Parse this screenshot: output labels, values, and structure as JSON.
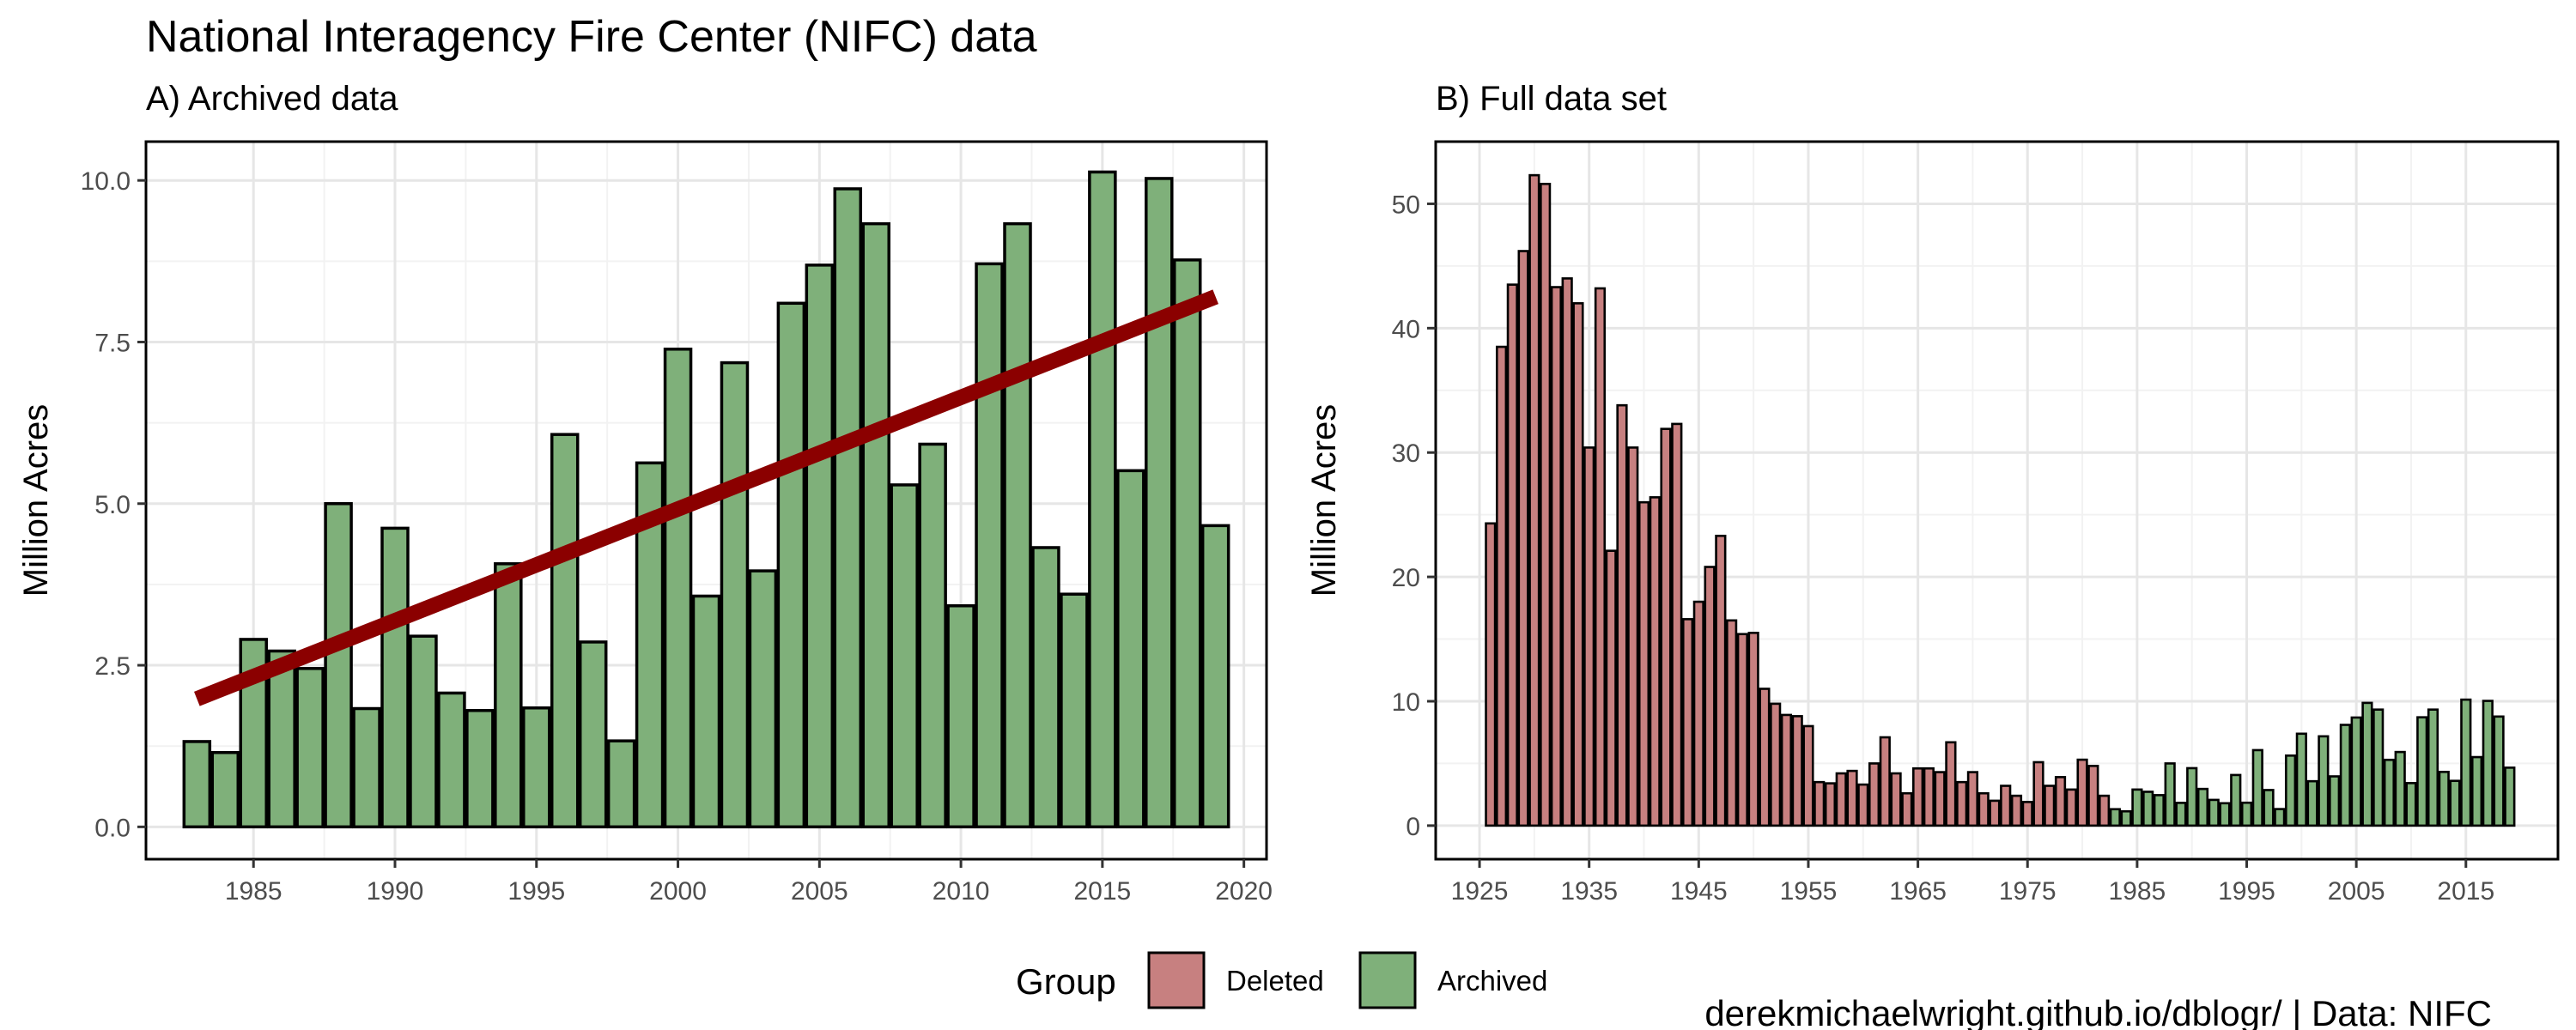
{
  "figure": {
    "title": "National Interagency Fire Center (NIFC) data",
    "caption": "derekmichaelwright.github.io/dblogr/ | Data: NIFC",
    "legend": {
      "title": "Group",
      "items": [
        {
          "label": "Deleted",
          "color": "#c78080"
        },
        {
          "label": "Archived",
          "color": "#7fb07a"
        }
      ]
    },
    "colors": {
      "deleted": "#c78080",
      "archived": "#7fb07a",
      "trend": "#8b0000",
      "outline": "#000000"
    }
  },
  "chart_data": [
    {
      "type": "bar",
      "title": "A) Archived data",
      "xlabel": "",
      "ylabel": "Million Acres",
      "xlim": [
        1981.2,
        2020.8
      ],
      "ylim": [
        -0.5,
        10.6
      ],
      "xticks": [
        1985,
        1990,
        1995,
        2000,
        2005,
        2010,
        2015,
        2020
      ],
      "yticks": [
        0.0,
        2.5,
        5.0,
        7.5,
        10.0
      ],
      "ytick_labels": [
        "0.0",
        "2.5",
        "5.0",
        "7.5",
        "10.0"
      ],
      "grid": true,
      "series": [
        {
          "group": "Archived",
          "x": [
            1983,
            1984,
            1985,
            1986,
            1987,
            1988,
            1989,
            1990,
            1991,
            1992,
            1993,
            1994,
            1995,
            1996,
            1997,
            1998,
            1999,
            2000,
            2001,
            2002,
            2003,
            2004,
            2005,
            2006,
            2007,
            2008,
            2009,
            2010,
            2011,
            2012,
            2013,
            2014,
            2015,
            2016,
            2017,
            2018,
            2019
          ],
          "values": [
            1.32,
            1.15,
            2.9,
            2.72,
            2.45,
            5.0,
            1.83,
            4.62,
            2.95,
            2.07,
            1.8,
            4.07,
            1.84,
            6.07,
            2.86,
            1.33,
            5.63,
            7.39,
            3.57,
            7.18,
            3.96,
            8.1,
            8.69,
            9.87,
            9.33,
            5.29,
            5.92,
            3.42,
            8.71,
            9.33,
            4.32,
            3.6,
            10.13,
            5.51,
            10.03,
            8.77,
            4.66
          ]
        }
      ],
      "trend": {
        "x": [
          1983,
          2019
        ],
        "y": [
          1.98,
          8.2
        ]
      }
    },
    {
      "type": "bar",
      "title": "B) Full data set",
      "xlabel": "",
      "ylabel": "Million Acres",
      "xlim": [
        1921.0,
        2023.4
      ],
      "ylim": [
        -2.7,
        55.0
      ],
      "xticks": [
        1925,
        1935,
        1945,
        1955,
        1965,
        1975,
        1985,
        1995,
        2005,
        2015
      ],
      "yticks": [
        0,
        10,
        20,
        30,
        40,
        50
      ],
      "ytick_labels": [
        "0",
        "10",
        "20",
        "30",
        "40",
        "50"
      ],
      "grid": true,
      "series": [
        {
          "group": "Deleted",
          "x": [
            1926,
            1927,
            1928,
            1929,
            1930,
            1931,
            1932,
            1933,
            1934,
            1935,
            1936,
            1937,
            1938,
            1939,
            1940,
            1941,
            1942,
            1943,
            1944,
            1945,
            1946,
            1947,
            1948,
            1949,
            1950,
            1951,
            1952,
            1953,
            1954,
            1955,
            1956,
            1957,
            1958,
            1959,
            1960,
            1961,
            1962,
            1963,
            1964,
            1965,
            1966,
            1967,
            1968,
            1969,
            1970,
            1971,
            1972,
            1973,
            1974,
            1975,
            1976,
            1977,
            1978,
            1979,
            1980,
            1981,
            1982
          ],
          "values": [
            24.3,
            38.5,
            43.5,
            46.2,
            52.3,
            51.6,
            43.3,
            44.0,
            42.0,
            30.4,
            43.2,
            22.1,
            33.8,
            30.4,
            26.0,
            26.4,
            31.9,
            32.3,
            16.6,
            18.0,
            20.8,
            23.3,
            16.5,
            15.4,
            15.5,
            11.0,
            9.8,
            8.9,
            8.8,
            8.0,
            3.5,
            3.4,
            4.2,
            4.4,
            3.3,
            5.0,
            7.1,
            4.2,
            2.6,
            4.6,
            4.6,
            4.3,
            6.7,
            3.5,
            4.3,
            2.6,
            2.0,
            3.2,
            2.4,
            1.9,
            5.1,
            3.2,
            3.9,
            2.9,
            5.3,
            4.8,
            2.4
          ]
        },
        {
          "group": "Archived",
          "x": [
            1983,
            1984,
            1985,
            1986,
            1987,
            1988,
            1989,
            1990,
            1991,
            1992,
            1993,
            1994,
            1995,
            1996,
            1997,
            1998,
            1999,
            2000,
            2001,
            2002,
            2003,
            2004,
            2005,
            2006,
            2007,
            2008,
            2009,
            2010,
            2011,
            2012,
            2013,
            2014,
            2015,
            2016,
            2017,
            2018,
            2019
          ],
          "values": [
            1.32,
            1.15,
            2.9,
            2.72,
            2.45,
            5.0,
            1.83,
            4.62,
            2.95,
            2.07,
            1.8,
            4.07,
            1.84,
            6.07,
            2.86,
            1.33,
            5.63,
            7.39,
            3.57,
            7.18,
            3.96,
            8.1,
            8.69,
            9.87,
            9.33,
            5.29,
            5.92,
            3.42,
            8.71,
            9.33,
            4.32,
            3.6,
            10.13,
            5.51,
            10.03,
            8.77,
            4.66
          ]
        }
      ]
    }
  ]
}
